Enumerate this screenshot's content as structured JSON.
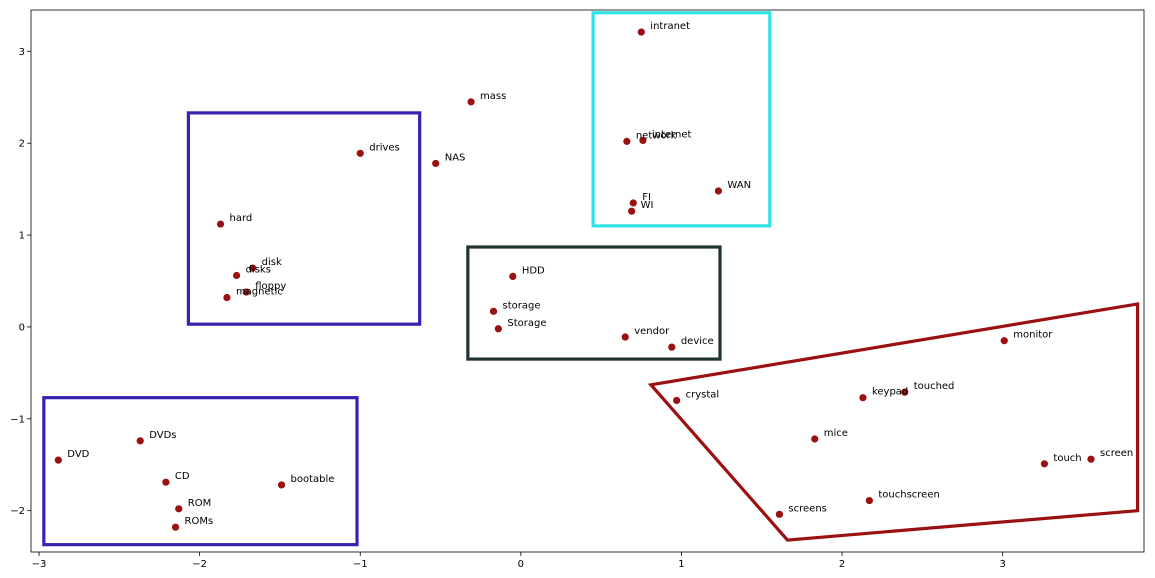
{
  "chart_data": {
    "type": "scatter",
    "xlim": [
      -3.05,
      3.88
    ],
    "ylim": [
      -2.45,
      3.45
    ],
    "xticks": [
      -3,
      -2,
      -1,
      0,
      1,
      2,
      3
    ],
    "yticks": [
      -2,
      -1,
      0,
      1,
      2,
      3
    ],
    "grid": false,
    "point_color": "#9b1010",
    "points": [
      {
        "label": "intranet",
        "x": 0.75,
        "y": 3.21
      },
      {
        "label": "mass",
        "x": -0.31,
        "y": 2.45
      },
      {
        "label": "internet",
        "x": 0.76,
        "y": 2.03
      },
      {
        "label": "network",
        "x": 0.66,
        "y": 2.02
      },
      {
        "label": "drives",
        "x": -1.0,
        "y": 1.89
      },
      {
        "label": "NAS",
        "x": -0.53,
        "y": 1.78
      },
      {
        "label": "WAN",
        "x": 1.23,
        "y": 1.48
      },
      {
        "label": "FI",
        "x": 0.7,
        "y": 1.35
      },
      {
        "label": "WI",
        "x": 0.69,
        "y": 1.26
      },
      {
        "label": "hard",
        "x": -1.87,
        "y": 1.12
      },
      {
        "label": "disk",
        "x": -1.67,
        "y": 0.64
      },
      {
        "label": "disks",
        "x": -1.77,
        "y": 0.56
      },
      {
        "label": "HDD",
        "x": -0.05,
        "y": 0.55
      },
      {
        "label": "floppy",
        "x": -1.71,
        "y": 0.38
      },
      {
        "label": "magnetic",
        "x": -1.83,
        "y": 0.32
      },
      {
        "label": "storage",
        "x": -0.17,
        "y": 0.17
      },
      {
        "label": "Storage",
        "x": -0.14,
        "y": -0.02
      },
      {
        "label": "vendor",
        "x": 0.65,
        "y": -0.11
      },
      {
        "label": "device",
        "x": 0.94,
        "y": -0.22
      },
      {
        "label": "monitor",
        "x": 3.01,
        "y": -0.15
      },
      {
        "label": "touched",
        "x": 2.39,
        "y": -0.71
      },
      {
        "label": "keypad",
        "x": 2.13,
        "y": -0.77
      },
      {
        "label": "crystal",
        "x": 0.97,
        "y": -0.8
      },
      {
        "label": "mice",
        "x": 1.83,
        "y": -1.22
      },
      {
        "label": "DVDs",
        "x": -2.37,
        "y": -1.24
      },
      {
        "label": "DVD",
        "x": -2.88,
        "y": -1.45
      },
      {
        "label": "screen",
        "x": 3.55,
        "y": -1.44
      },
      {
        "label": "touch",
        "x": 3.26,
        "y": -1.49
      },
      {
        "label": "CD",
        "x": -2.21,
        "y": -1.69
      },
      {
        "label": "bootable",
        "x": -1.49,
        "y": -1.72
      },
      {
        "label": "touchscreen",
        "x": 2.17,
        "y": -1.89
      },
      {
        "label": "ROM",
        "x": -2.13,
        "y": -1.98
      },
      {
        "label": "screens",
        "x": 1.61,
        "y": -2.04
      },
      {
        "label": "ROMs",
        "x": -2.15,
        "y": -2.18
      }
    ],
    "annotations": [
      {
        "shape": "rect",
        "color": "#3a22b0",
        "x0": -2.07,
        "x1": -0.63,
        "y0": 0.03,
        "y1": 2.33
      },
      {
        "shape": "rect",
        "color": "#2fe3e3",
        "x0": 0.45,
        "x1": 1.55,
        "y0": 1.1,
        "y1": 3.42
      },
      {
        "shape": "rect",
        "color": "#1f3333",
        "x0": -0.33,
        "x1": 1.24,
        "y0": -0.35,
        "y1": 0.87
      },
      {
        "shape": "rect",
        "color": "#3a22b0",
        "x0": -2.97,
        "x1": -1.02,
        "y0": -2.37,
        "y1": -0.77
      },
      {
        "shape": "polygon",
        "color": "#9b1010",
        "points": [
          [
            0.81,
            -0.63
          ],
          [
            3.84,
            0.25
          ],
          [
            3.84,
            -1.9
          ],
          [
            3.84,
            -2.0
          ],
          [
            1.66,
            -2.32
          ]
        ]
      }
    ]
  }
}
